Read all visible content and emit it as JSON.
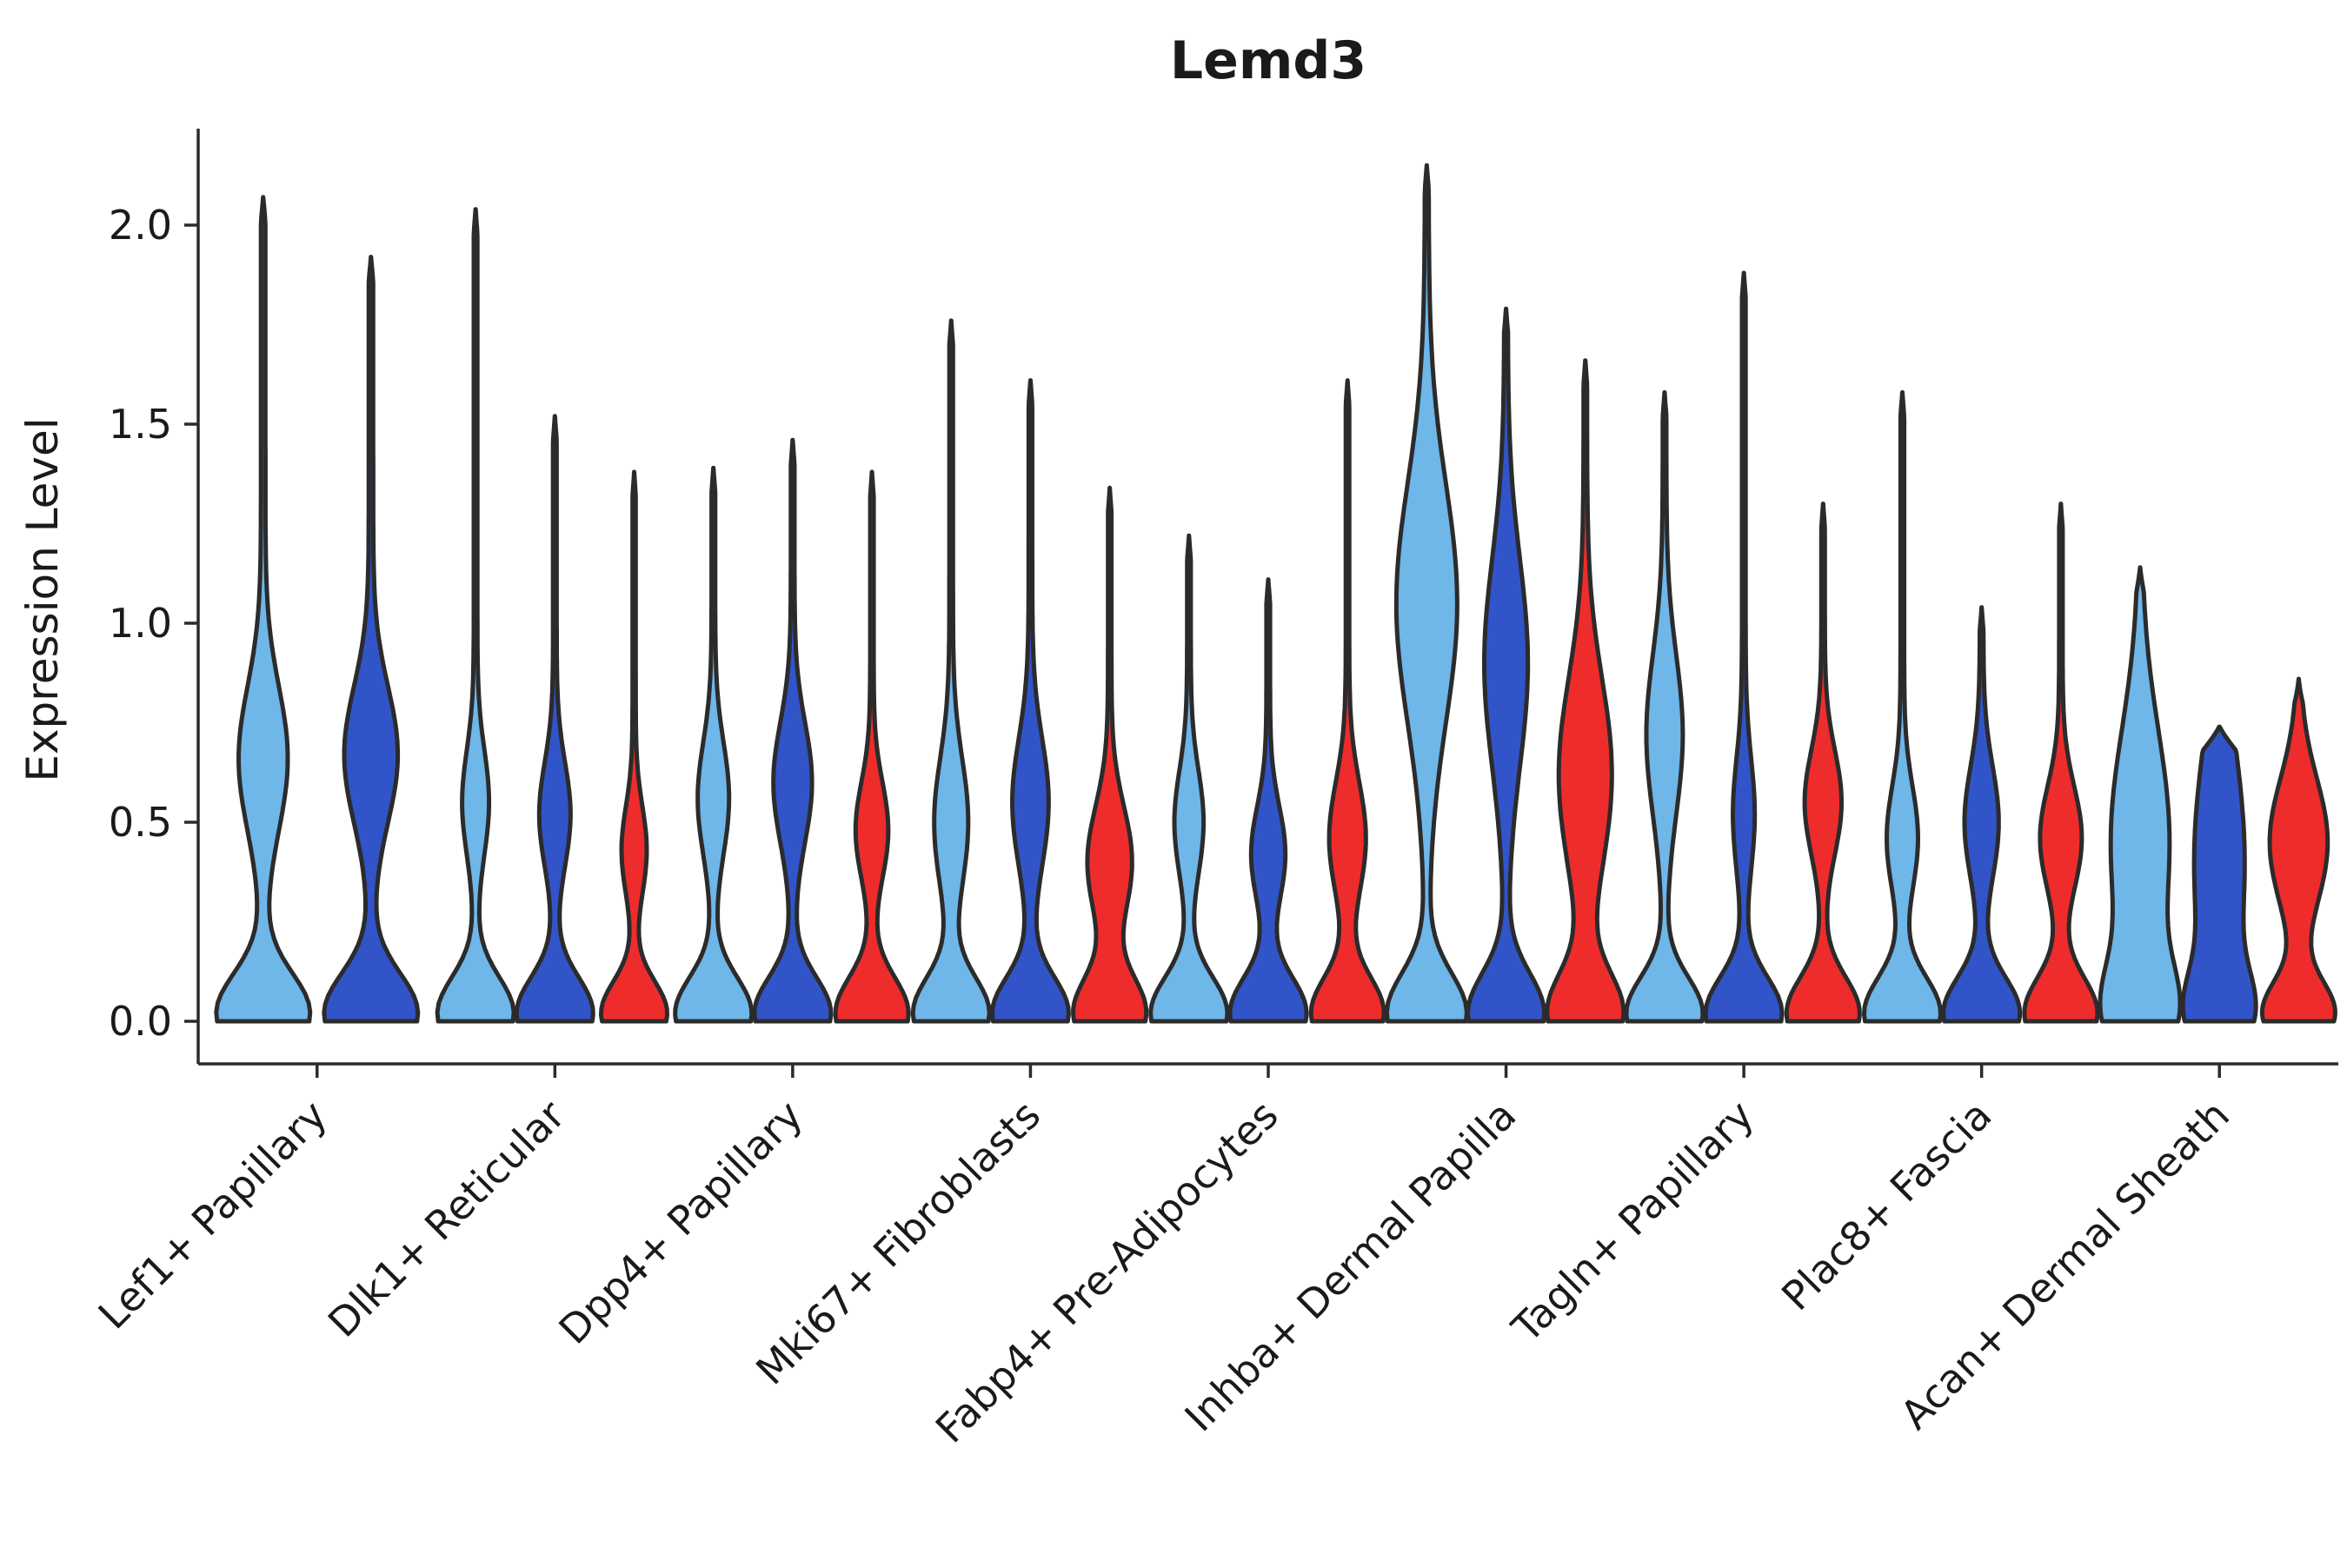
{
  "title": "Lemd3",
  "axes": {
    "ylabel": "Expression Level",
    "ytick_labels": [
      "0.0",
      "0.5",
      "1.0",
      "1.5",
      "2.0"
    ]
  },
  "chart_data": {
    "type": "violin",
    "title": "Lemd3",
    "xlabel": "",
    "ylabel": "Expression Level",
    "ylim": [
      -0.11,
      2.25
    ],
    "yticks": [
      0.0,
      0.5,
      1.0,
      1.5,
      2.0
    ],
    "ytick_labels": [
      "0.0",
      "0.5",
      "1.0",
      "1.5",
      "2.0"
    ],
    "grid": false,
    "legend": "none",
    "edge_color": "#2b2b2b",
    "categories": [
      "Lef1+ Papillary",
      "Dlk1+ Reticular",
      "Dpp4+ Papillary",
      "Mki67+ Fibroblasts",
      "Fabp4+ Pre-Adipocytes",
      "Inhba+ Dermal Papilla",
      "Tagln+ Papillary",
      "Plac8+ Fascia",
      "Acan+ Dermal Sheath"
    ],
    "series": [
      {
        "name": "group-lightblue",
        "color": "#6FB6E9",
        "violins": [
          {
            "max": 2.07,
            "density_bumps": [
              [
                0.02,
                0.1,
                1.0
              ],
              [
                0.66,
                0.18,
                0.5
              ]
            ],
            "stem": 0.05,
            "halfwidth": 54
          },
          {
            "max": 2.04,
            "density_bumps": [
              [
                0.02,
                0.09,
                1.0
              ],
              [
                0.55,
                0.13,
                0.32
              ]
            ],
            "stem": 0.05,
            "halfwidth": 44
          },
          {
            "max": 1.39,
            "density_bumps": [
              [
                0.02,
                0.09,
                1.0
              ],
              [
                0.56,
                0.14,
                0.38
              ]
            ],
            "stem": 0.05,
            "halfwidth": 44
          },
          {
            "max": 1.76,
            "density_bumps": [
              [
                0.02,
                0.09,
                1.0
              ],
              [
                0.5,
                0.16,
                0.42
              ]
            ],
            "stem": 0.05,
            "halfwidth": 44
          },
          {
            "max": 1.22,
            "density_bumps": [
              [
                0.02,
                0.09,
                1.0
              ],
              [
                0.5,
                0.13,
                0.35
              ]
            ],
            "stem": 0.05,
            "halfwidth": 44
          },
          {
            "max": 2.15,
            "density_bumps": [
              [
                0.02,
                0.1,
                1.0
              ],
              [
                1.05,
                0.3,
                0.75
              ]
            ],
            "stem": 0.05,
            "halfwidth": 46
          },
          {
            "max": 1.58,
            "density_bumps": [
              [
                0.02,
                0.09,
                1.0
              ],
              [
                0.72,
                0.2,
                0.45
              ]
            ],
            "stem": 0.05,
            "halfwidth": 44
          },
          {
            "max": 1.58,
            "density_bumps": [
              [
                0.02,
                0.09,
                1.0
              ],
              [
                0.46,
                0.13,
                0.38
              ]
            ],
            "stem": 0.05,
            "halfwidth": 44
          },
          {
            "max": 1.14,
            "density_bumps": [
              [
                0.02,
                0.12,
                1.0
              ],
              [
                0.45,
                0.28,
                0.95
              ]
            ],
            "stem": 0.05,
            "halfwidth": 46
          }
        ]
      },
      {
        "name": "group-darkblue",
        "color": "#3154C8",
        "violins": [
          {
            "max": 1.92,
            "density_bumps": [
              [
                0.02,
                0.1,
                1.0
              ],
              [
                0.67,
                0.17,
                0.55
              ]
            ],
            "stem": 0.05,
            "halfwidth": 54
          },
          {
            "max": 1.52,
            "density_bumps": [
              [
                0.02,
                0.09,
                1.0
              ],
              [
                0.52,
                0.13,
                0.38
              ]
            ],
            "stem": 0.05,
            "halfwidth": 44
          },
          {
            "max": 1.46,
            "density_bumps": [
              [
                0.02,
                0.09,
                1.0
              ],
              [
                0.6,
                0.15,
                0.48
              ]
            ],
            "stem": 0.05,
            "halfwidth": 44
          },
          {
            "max": 1.61,
            "density_bumps": [
              [
                0.02,
                0.09,
                1.0
              ],
              [
                0.55,
                0.16,
                0.45
              ]
            ],
            "stem": 0.05,
            "halfwidth": 44
          },
          {
            "max": 1.11,
            "density_bumps": [
              [
                0.02,
                0.09,
                1.0
              ],
              [
                0.42,
                0.12,
                0.42
              ]
            ],
            "stem": 0.05,
            "halfwidth": 44
          },
          {
            "max": 1.79,
            "density_bumps": [
              [
                0.02,
                0.1,
                1.0
              ],
              [
                0.9,
                0.26,
                0.55
              ]
            ],
            "stem": 0.05,
            "halfwidth": 44
          },
          {
            "max": 1.88,
            "density_bumps": [
              [
                0.02,
                0.09,
                1.0
              ],
              [
                0.52,
                0.14,
                0.25
              ]
            ],
            "stem": 0.05,
            "halfwidth": 44
          },
          {
            "max": 1.04,
            "density_bumps": [
              [
                0.02,
                0.09,
                1.0
              ],
              [
                0.5,
                0.14,
                0.42
              ]
            ],
            "stem": 0.05,
            "halfwidth": 44
          },
          {
            "max": 0.74,
            "density_bumps": [
              [
                0.02,
                0.1,
                1.0
              ],
              [
                0.4,
                0.3,
                1.0
              ]
            ],
            "stem": 0.05,
            "halfwidth": 42
          }
        ]
      },
      {
        "name": "group-red",
        "color": "#EE2C2C",
        "violins": [
          null,
          {
            "max": 1.38,
            "density_bumps": [
              [
                0.02,
                0.08,
                1.0
              ],
              [
                0.43,
                0.11,
                0.35
              ]
            ],
            "stem": 0.05,
            "halfwidth": 38
          },
          {
            "max": 1.38,
            "density_bumps": [
              [
                0.02,
                0.09,
                1.0
              ],
              [
                0.48,
                0.12,
                0.42
              ]
            ],
            "stem": 0.05,
            "halfwidth": 42
          },
          {
            "max": 1.34,
            "density_bumps": [
              [
                0.02,
                0.09,
                1.0
              ],
              [
                0.4,
                0.14,
                0.6
              ]
            ],
            "stem": 0.05,
            "halfwidth": 42
          },
          {
            "max": 1.61,
            "density_bumps": [
              [
                0.02,
                0.09,
                1.0
              ],
              [
                0.46,
                0.14,
                0.48
              ]
            ],
            "stem": 0.05,
            "halfwidth": 42
          },
          {
            "max": 1.66,
            "density_bumps": [
              [
                0.02,
                0.1,
                1.0
              ],
              [
                0.62,
                0.24,
                0.7
              ]
            ],
            "stem": 0.05,
            "halfwidth": 44
          },
          {
            "max": 1.3,
            "density_bumps": [
              [
                0.02,
                0.09,
                1.0
              ],
              [
                0.55,
                0.13,
                0.48
              ]
            ],
            "stem": 0.05,
            "halfwidth": 42
          },
          {
            "max": 1.3,
            "density_bumps": [
              [
                0.02,
                0.09,
                1.0
              ],
              [
                0.46,
                0.13,
                0.55
              ]
            ],
            "stem": 0.05,
            "halfwidth": 42
          },
          {
            "max": 0.86,
            "density_bumps": [
              [
                0.02,
                0.08,
                1.0
              ],
              [
                0.45,
                0.16,
                0.8
              ]
            ],
            "stem": 0.05,
            "halfwidth": 42
          }
        ]
      }
    ]
  }
}
